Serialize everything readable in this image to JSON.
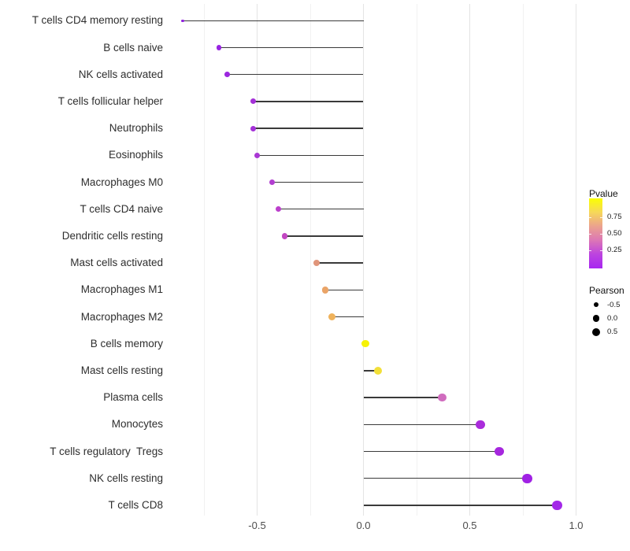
{
  "chart_data": {
    "type": "scatter",
    "variant": "horizontal-lollipop",
    "title": "",
    "xlabel": "",
    "ylabel": "",
    "xlim": [
      -0.89,
      1.05
    ],
    "x_major_ticks": [
      -0.5,
      0.0,
      0.5,
      1.0
    ],
    "x_major_tick_labels": [
      "-0.5",
      "0.0",
      "0.5",
      "1.0"
    ],
    "x_minor_ticks": [
      -0.75,
      -0.25,
      0.25,
      0.75
    ],
    "grid": "vertical-only",
    "baseline_value": 0,
    "legend_position": "right",
    "points": [
      {
        "label": "T cells CD4 memory resting",
        "pearson": -0.85,
        "color": "#8f20dd",
        "diameter": 3.2
      },
      {
        "label": "B cells naive",
        "pearson": -0.68,
        "color": "#9824e2",
        "diameter": 6.6
      },
      {
        "label": "NK cells activated",
        "pearson": -0.64,
        "color": "#9c27df",
        "diameter": 6.8
      },
      {
        "label": "T cells follicular helper",
        "pearson": -0.52,
        "color": "#a431d8",
        "diameter": 7.0
      },
      {
        "label": "Neutrophils",
        "pearson": -0.52,
        "color": "#a431d8",
        "diameter": 7.0
      },
      {
        "label": "Eosinophils",
        "pearson": -0.5,
        "color": "#a937d4",
        "diameter": 7.2
      },
      {
        "label": "Macrophages M0",
        "pearson": -0.43,
        "color": "#b23ed0",
        "diameter": 7.5
      },
      {
        "label": "T cells CD4 naive",
        "pearson": -0.4,
        "color": "#bc40cc",
        "diameter": 7.6
      },
      {
        "label": "Dendritic cells resting",
        "pearson": -0.37,
        "color": "#c247c2",
        "diameter": 7.8
      },
      {
        "label": "Mast cells activated",
        "pearson": -0.22,
        "color": "#e0957a",
        "diameter": 8.3
      },
      {
        "label": "Macrophages M1",
        "pearson": -0.18,
        "color": "#eaa467",
        "diameter": 8.7
      },
      {
        "label": "Macrophages M2",
        "pearson": -0.15,
        "color": "#efb25b",
        "diameter": 9.0
      },
      {
        "label": "B cells memory",
        "pearson": 0.01,
        "color": "#f6f205",
        "diameter": 9.6
      },
      {
        "label": "Mast cells resting",
        "pearson": 0.07,
        "color": "#f2df38",
        "diameter": 10.0
      },
      {
        "label": "Plasma cells",
        "pearson": 0.37,
        "color": "#d06cbe",
        "diameter": 10.7
      },
      {
        "label": "Monocytes",
        "pearson": 0.55,
        "color": "#aa2cdb",
        "diameter": 11.3
      },
      {
        "label": "T cells regulatory  Tregs",
        "pearson": 0.64,
        "color": "#a627de",
        "diameter": 11.8
      },
      {
        "label": "NK cells resting",
        "pearson": 0.77,
        "color": "#a021e4",
        "diameter": 12.3
      },
      {
        "label": "T cells CD8",
        "pearson": 0.91,
        "color": "#a328e8",
        "diameter": 12.8
      }
    ],
    "legends": {
      "pvalue": {
        "title": "Pvalue",
        "tick_labels": [
          "0.75",
          "0.50",
          "0.25"
        ],
        "tick_values": [
          0.75,
          0.5,
          0.25
        ],
        "gradient_stops_top_to_bottom": [
          "#faff02",
          "#f6d75a",
          "#eba28e",
          "#dc76b6",
          "#bc43e0",
          "#a826f0"
        ]
      },
      "pearson": {
        "title": "Pearson",
        "entries": [
          {
            "label": "-0.5",
            "diameter": 6.7
          },
          {
            "label": "0.0",
            "diameter": 8.7
          },
          {
            "label": "0.5",
            "diameter": 10.0
          }
        ],
        "dot_color": "#000000"
      }
    },
    "colors": {
      "stick": "#3a3a3a",
      "grid_major": "#e4e4e4",
      "grid_minor": "#f1f1f1",
      "axis_text": "#4d4d4d",
      "category_text": "#2e2e2e",
      "background": "#ffffff"
    }
  }
}
